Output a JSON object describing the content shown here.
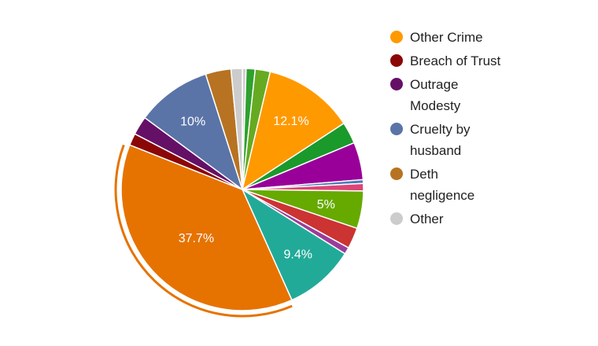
{
  "chart_data": {
    "type": "pie",
    "title": "",
    "slices": [
      {
        "label": "",
        "value": 0.5,
        "color": "#cfcfcf",
        "show_label": ""
      },
      {
        "label": "",
        "value": 1.2,
        "color": "#2ea12e",
        "show_label": ""
      },
      {
        "label": "",
        "value": 2.0,
        "color": "#66aa22",
        "show_label": ""
      },
      {
        "label": "Other Crime",
        "value": 12.1,
        "color": "#ff9900",
        "show_label": "12.1%"
      },
      {
        "label": "",
        "value": 2.9,
        "color": "#1a9a2a",
        "show_label": ""
      },
      {
        "label": "",
        "value": 5.0,
        "color": "#990099",
        "show_label": ""
      },
      {
        "label": "",
        "value": 0.5,
        "color": "#4a7ab8",
        "show_label": ""
      },
      {
        "label": "",
        "value": 1.0,
        "color": "#dd4477",
        "show_label": ""
      },
      {
        "label": "",
        "value": 5.0,
        "color": "#66aa00",
        "show_label": "5%"
      },
      {
        "label": "",
        "value": 2.8,
        "color": "#cc3333",
        "show_label": ""
      },
      {
        "label": "",
        "value": 0.9,
        "color": "#9a3d9a",
        "show_label": ""
      },
      {
        "label": "",
        "value": 9.4,
        "color": "#22aa99",
        "show_label": "9.4%"
      },
      {
        "label": "",
        "value": 37.7,
        "color": "#e67300",
        "show_label": "37.7%",
        "highlighted": true
      },
      {
        "label": "Breach of Trust",
        "value": 1.6,
        "color": "#8b0707",
        "show_label": ""
      },
      {
        "label": "Outrage Modesty",
        "value": 2.5,
        "color": "#651067",
        "show_label": ""
      },
      {
        "label": "Cruelty by husband",
        "value": 10.0,
        "color": "#5a74a8",
        "show_label": "10%"
      },
      {
        "label": "Deth negligence",
        "value": 3.4,
        "color": "#b77322",
        "show_label": ""
      },
      {
        "label": "Other",
        "value": 1.5,
        "color": "#cccccc",
        "show_label": ""
      }
    ],
    "legend": {
      "placement": "right",
      "entries": [
        {
          "lines": [
            "Other Crime"
          ],
          "color": "#ff9900"
        },
        {
          "lines": [
            "Breach of Trust"
          ],
          "color": "#8b0707"
        },
        {
          "lines": [
            "Outrage",
            "Modesty"
          ],
          "color": "#651067"
        },
        {
          "lines": [
            "Cruelty by",
            "husband"
          ],
          "color": "#5a74a8"
        },
        {
          "lines": [
            "Deth",
            "negligence"
          ],
          "color": "#b77322"
        },
        {
          "lines": [
            "Other"
          ],
          "color": "#cccccc"
        }
      ]
    }
  }
}
